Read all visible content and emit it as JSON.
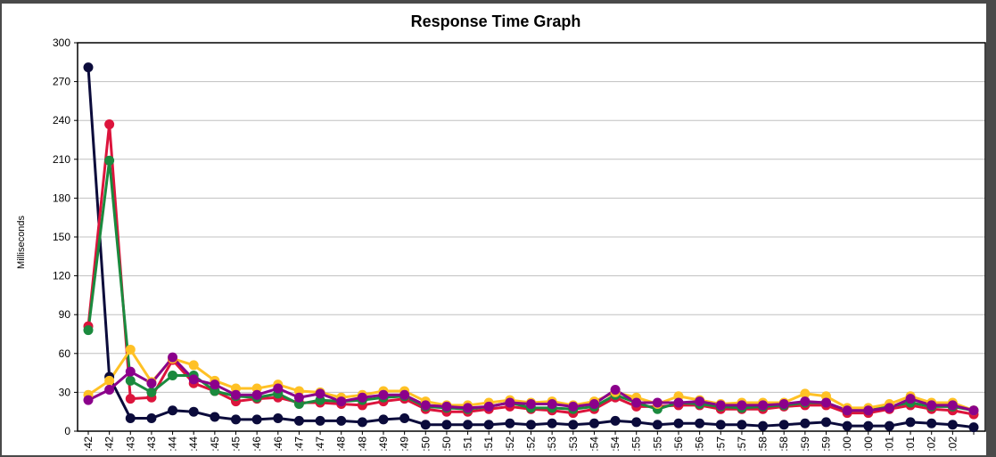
{
  "chart_data": {
    "type": "line",
    "title": "Response Time Graph",
    "y_label": "Milliseconds",
    "categories": [
      ":42",
      ":42",
      ":43",
      ":43",
      ":44",
      ":44",
      ":45",
      ":45",
      ":46",
      ":46",
      ":47",
      ":47",
      ":48",
      ":48",
      ":49",
      ":49",
      ":50",
      ":50",
      ":51",
      ":51",
      ":52",
      ":52",
      ":53",
      ":53",
      ":54",
      ":54",
      ":55",
      ":55",
      ":56",
      ":56",
      ":57",
      ":57",
      ":58",
      ":58",
      ":59",
      ":59",
      ":00",
      ":00",
      ":01",
      ":01",
      ":02",
      ":02",
      null
    ],
    "series": [
      {
        "color": "#0b0b3b",
        "values": [
          281,
          42,
          10,
          10,
          16,
          15,
          11,
          9,
          9,
          10,
          8,
          8,
          8,
          7,
          9,
          10,
          5,
          5,
          5,
          5,
          6,
          5,
          6,
          5,
          6,
          8,
          7,
          5,
          6,
          6,
          5,
          5,
          4,
          5,
          6,
          7,
          4,
          4,
          4,
          7,
          6,
          5,
          3
        ]
      },
      {
        "color": "#dc143c",
        "values": [
          81,
          237,
          25,
          26,
          55,
          37,
          31,
          23,
          25,
          26,
          22,
          22,
          21,
          20,
          23,
          25,
          17,
          15,
          15,
          17,
          19,
          17,
          16,
          14,
          17,
          26,
          19,
          19,
          20,
          20,
          17,
          17,
          17,
          19,
          20,
          20,
          14,
          14,
          17,
          20,
          17,
          16,
          13
        ]
      },
      {
        "color": "#1b8a3e",
        "values": [
          78,
          209,
          39,
          30,
          43,
          43,
          31,
          27,
          26,
          29,
          21,
          24,
          23,
          24,
          26,
          27,
          19,
          18,
          17,
          19,
          22,
          18,
          18,
          17,
          19,
          28,
          22,
          17,
          22,
          21,
          19,
          18,
          19,
          20,
          22,
          22,
          16,
          16,
          19,
          22,
          19,
          19,
          16
        ]
      },
      {
        "color": "#ffc125",
        "values": [
          28,
          39,
          63,
          38,
          56,
          51,
          39,
          33,
          33,
          36,
          31,
          30,
          26,
          28,
          31,
          31,
          23,
          20,
          20,
          22,
          24,
          22,
          23,
          20,
          23,
          30,
          26,
          21,
          27,
          24,
          21,
          22,
          22,
          22,
          29,
          27,
          18,
          18,
          21,
          27,
          22,
          22,
          16
        ]
      },
      {
        "color": "#8b008b",
        "values": [
          24,
          32,
          46,
          37,
          57,
          40,
          36,
          28,
          28,
          33,
          26,
          29,
          23,
          26,
          28,
          28,
          20,
          19,
          18,
          19,
          22,
          21,
          21,
          19,
          21,
          32,
          22,
          22,
          22,
          23,
          20,
          20,
          20,
          21,
          23,
          22,
          16,
          16,
          18,
          25,
          20,
          20,
          16
        ]
      }
    ],
    "ylim": [
      0,
      300
    ],
    "yticks": [
      0,
      30,
      60,
      90,
      120,
      150,
      180,
      210,
      240,
      270,
      300
    ],
    "grid": true
  }
}
